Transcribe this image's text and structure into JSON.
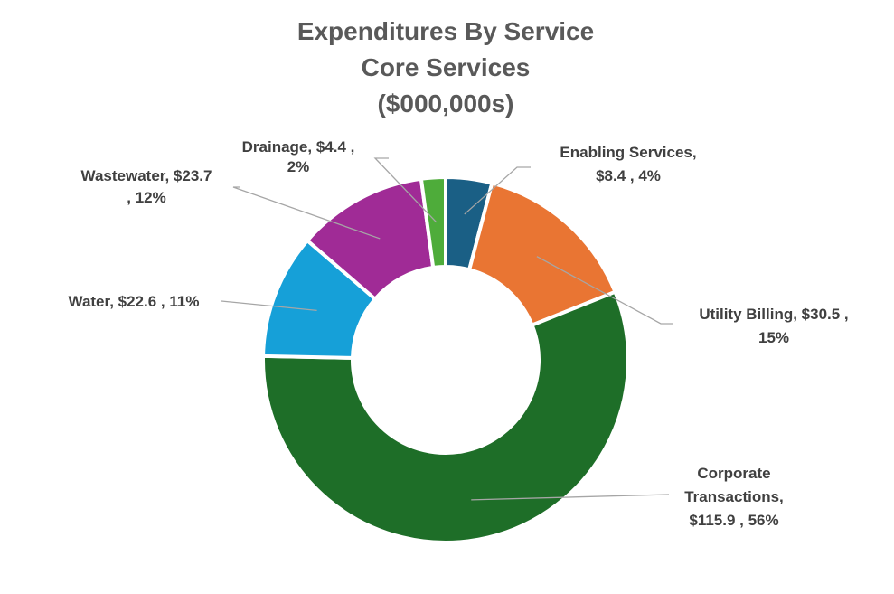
{
  "chart_data": {
    "type": "pie",
    "variant": "donut",
    "title": [
      "Expenditures By Service",
      "Core Services",
      "($000,000s)"
    ],
    "units": "$000,000s",
    "start_angle_deg": 0,
    "direction": "clockwise",
    "hole_fraction": 0.51,
    "slices": [
      {
        "name": "Enabling Services",
        "value": 8.4,
        "percent": 4,
        "color": "#1a5f85",
        "label_lines": [
          "Enabling Services,",
          "$8.4 , 4%"
        ]
      },
      {
        "name": "Utility Billing",
        "value": 30.5,
        "percent": 15,
        "color": "#e97533",
        "label_lines": [
          "Utility Billing,  $30.5 ,",
          "15%"
        ]
      },
      {
        "name": "Corporate Transactions",
        "value": 115.9,
        "percent": 56,
        "color": "#1e6e28",
        "label_lines": [
          "Corporate",
          "Transactions,",
          "$115.9 , 56%"
        ]
      },
      {
        "name": "Water",
        "value": 22.6,
        "percent": 11,
        "color": "#16a0d8",
        "label_lines": [
          "Water,  $22.6 , 11%"
        ]
      },
      {
        "name": "Wastewater",
        "value": 23.7,
        "percent": 12,
        "color": "#a02b96",
        "label_lines": [
          "Wastewater,  $23.7",
          ", 12%"
        ]
      },
      {
        "name": "Drainage",
        "value": 4.4,
        "percent": 2,
        "color": "#4eac3a",
        "label_lines": [
          "Drainage,  $4.4 ,",
          "2%"
        ]
      }
    ],
    "leader_line_color": "#a6a6a6",
    "legend": "none"
  }
}
